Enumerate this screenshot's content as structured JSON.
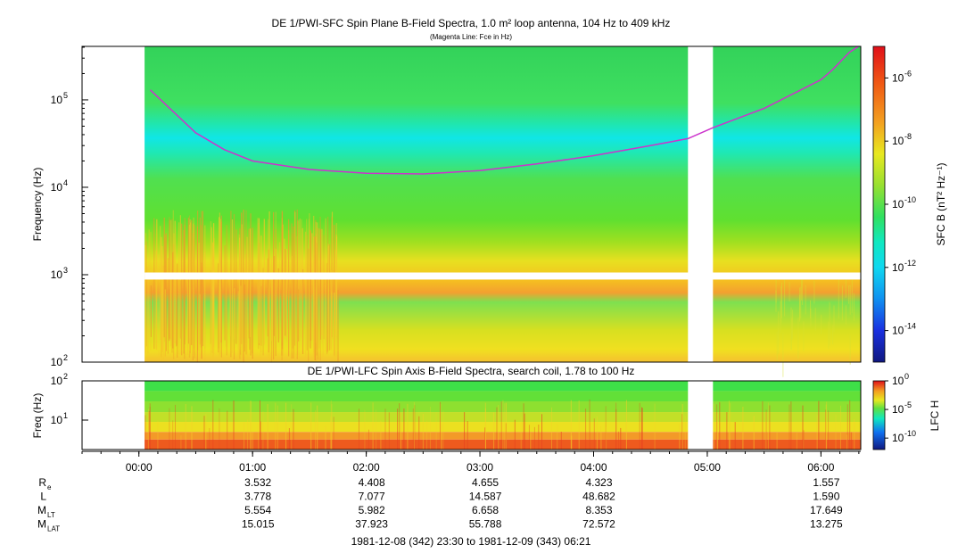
{
  "chart_data": {
    "type": "heatmap",
    "top_panel": {
      "title": "DE 1/PWI-SFC  Spin Plane B-Field Spectra, 1.0 m² loop antenna, 104 Hz to 409 kHz",
      "subtitle": "(Magenta Line: Fce in Hz)",
      "ylabel": "Frequency (Hz)",
      "y_scale": "log",
      "ylim": [
        100,
        409000
      ],
      "y_ticks": [
        {
          "value": 100,
          "base": "10",
          "exp": "2"
        },
        {
          "value": 1000,
          "base": "10",
          "exp": "3"
        },
        {
          "value": 10000,
          "base": "10",
          "exp": "4"
        },
        {
          "value": 100000,
          "base": "10",
          "exp": "5"
        }
      ],
      "colorbar_label": "SFC B (nT² Hz⁻¹)",
      "colorbar_range": [
        1e-15,
        1e-05
      ],
      "colorbar_ticks": [
        {
          "value": 1e-06,
          "base": "10",
          "exp": "-6"
        },
        {
          "value": 1e-08,
          "base": "10",
          "exp": "-8"
        },
        {
          "value": 1e-10,
          "base": "10",
          "exp": "-10"
        },
        {
          "value": 1e-12,
          "base": "10",
          "exp": "-12"
        },
        {
          "value": 1e-14,
          "base": "10",
          "exp": "-14"
        }
      ],
      "fce_line": {
        "name": "Fce",
        "color": "#cc33cc",
        "points": [
          [
            0.1,
            130000
          ],
          [
            0.25,
            85000
          ],
          [
            0.5,
            42000
          ],
          [
            0.75,
            27000
          ],
          [
            1.0,
            20000
          ],
          [
            1.5,
            16000
          ],
          [
            2.0,
            14500
          ],
          [
            2.5,
            14200
          ],
          [
            3.0,
            15500
          ],
          [
            3.5,
            18500
          ],
          [
            4.0,
            23000
          ],
          [
            4.5,
            30000
          ],
          [
            4.83,
            36000
          ],
          [
            5.05,
            48000
          ],
          [
            5.5,
            80000
          ],
          [
            6.0,
            170000
          ],
          [
            6.1,
            220000
          ],
          [
            6.25,
            350000
          ],
          [
            6.33,
            480000
          ]
        ]
      },
      "data_start_hour": 0.05,
      "data_gap_hours": [
        4.83,
        5.05
      ],
      "frequency_gap_hz": [
        880,
        1060
      ]
    },
    "bottom_panel": {
      "title": "DE 1/PWI-LFC  Spin Axis B-Field Spectra, search coil, 1.78 to 100 Hz",
      "ylabel": "Freq (Hz)",
      "y_scale": "log",
      "ylim": [
        1.78,
        100
      ],
      "y_ticks": [
        {
          "value": 100,
          "base": "10",
          "exp": "2"
        },
        {
          "value": 10,
          "base": "10",
          "exp": "1"
        }
      ],
      "colorbar_label": "LFC H",
      "colorbar_range": [
        1e-12,
        1
      ],
      "colorbar_ticks": [
        {
          "value": 1,
          "base": "10",
          "exp": "0"
        },
        {
          "value": 1e-05,
          "base": "10",
          "exp": "-5"
        },
        {
          "value": 1e-10,
          "base": "10",
          "exp": "-10"
        }
      ]
    },
    "x_axis": {
      "xlim_hours": [
        -0.5,
        6.35
      ],
      "ticks": [
        {
          "hour": 0,
          "label": "00:00"
        },
        {
          "hour": 1,
          "label": "01:00"
        },
        {
          "hour": 2,
          "label": "02:00"
        },
        {
          "hour": 3,
          "label": "03:00"
        },
        {
          "hour": 4,
          "label": "04:00"
        },
        {
          "hour": 5,
          "label": "05:00"
        },
        {
          "hour": 6,
          "label": "06:00"
        }
      ]
    },
    "ephemeris": {
      "rows": [
        {
          "label": "R",
          "sub": "e",
          "values": [
            "3.532",
            "4.408",
            "4.655",
            "4.323",
            "",
            "1.557"
          ]
        },
        {
          "label": "L",
          "sub": "",
          "values": [
            "3.778",
            "7.077",
            "14.587",
            "48.682",
            "",
            "1.590"
          ]
        },
        {
          "label": "M",
          "sub": "LT",
          "values": [
            "5.554",
            "5.982",
            "6.658",
            "8.353",
            "",
            "17.649"
          ]
        },
        {
          "label": "M",
          "sub": "LAT",
          "values": [
            "15.015",
            "37.923",
            "55.788",
            "72.572",
            "",
            "13.275"
          ]
        }
      ],
      "columns_hours": [
        1,
        2,
        3,
        4,
        5,
        6
      ]
    },
    "time_range": "1981-12-08 (342) 23:30 to 1981-12-09 (343) 06:21"
  }
}
